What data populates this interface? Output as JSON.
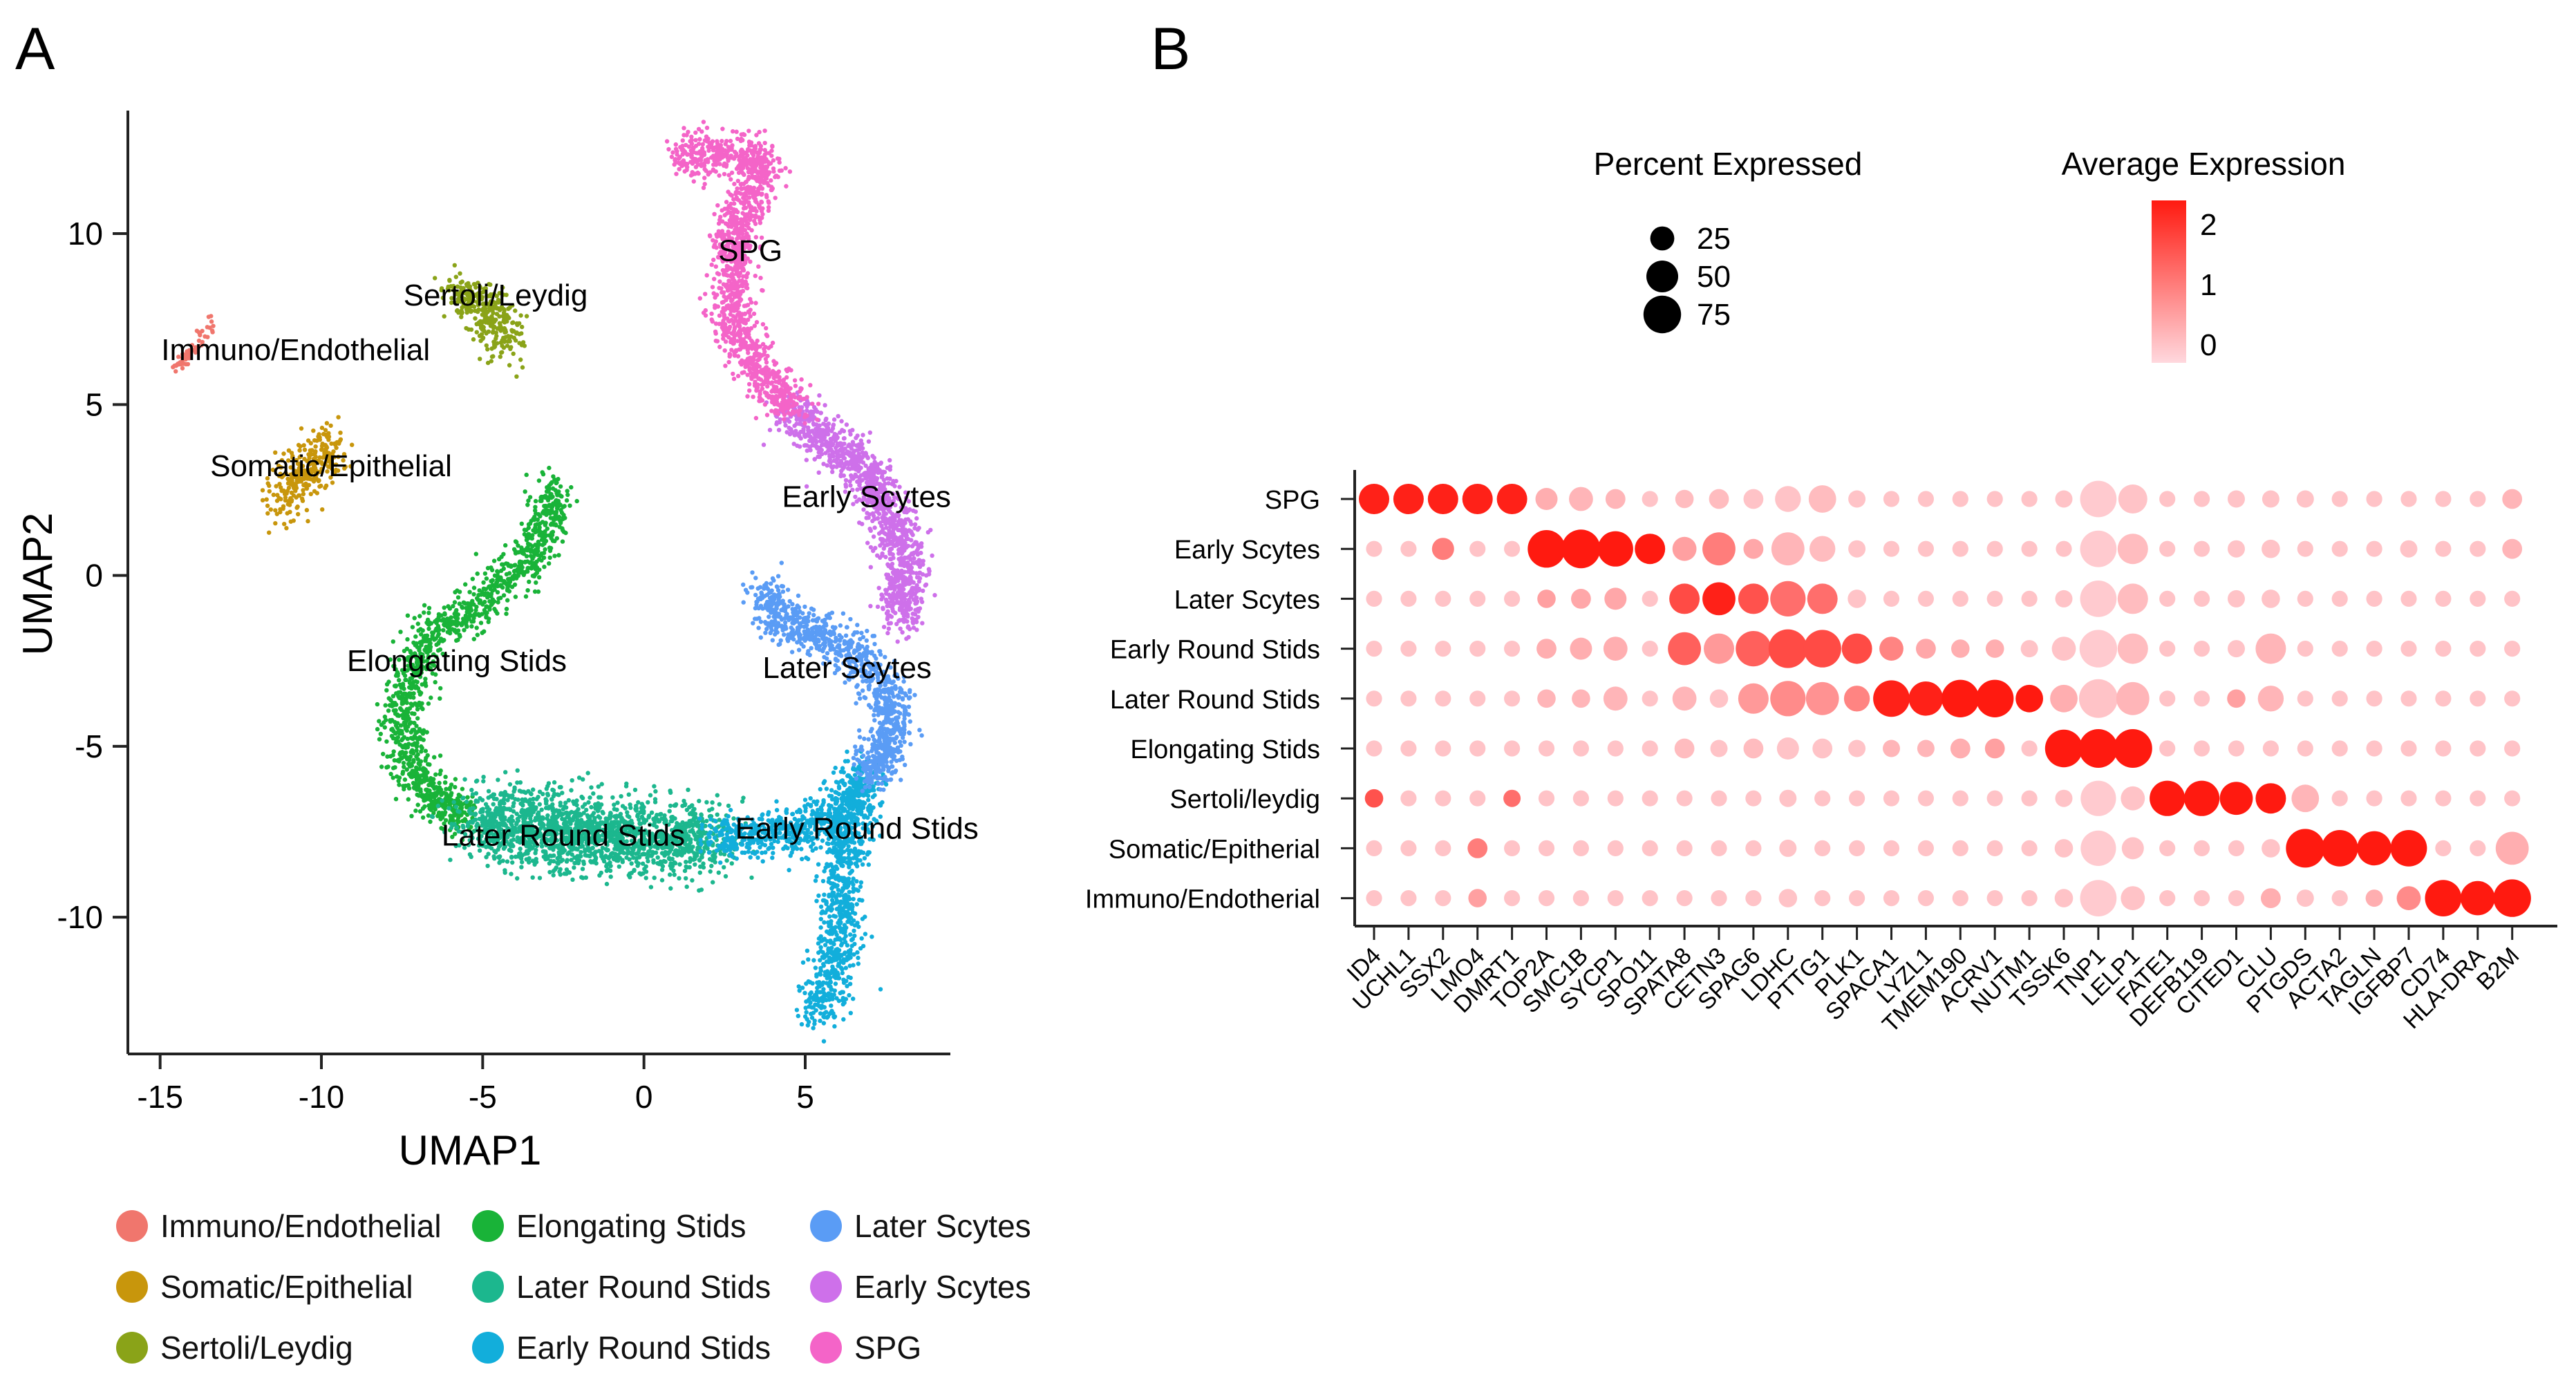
{
  "panels": {
    "a_label": "A",
    "b_label": "B"
  },
  "umap": {
    "xlabel": "UMAP1",
    "ylabel": "UMAP2",
    "xlim": [
      -16,
      9.5
    ],
    "ylim": [
      -14,
      13.6
    ],
    "xticks": [
      -15,
      -10,
      -5,
      0,
      5
    ],
    "yticks": [
      10,
      5,
      0,
      -5,
      -10
    ],
    "clusters": [
      {
        "name": "Immuno/Endothelial",
        "color": "#F0766D",
        "label_at": [
          -10.8,
          6.3
        ],
        "label_anchor": "middle"
      },
      {
        "name": "Somatic/Epithelial",
        "color": "#C8960C",
        "label_at": [
          -9.7,
          2.9
        ],
        "label_anchor": "middle"
      },
      {
        "name": "Sertoli/Leydig",
        "color": "#8AA318",
        "label_at": [
          -4.6,
          7.9
        ],
        "label_anchor": "middle"
      },
      {
        "name": "Elongating Stids",
        "color": "#19B338",
        "label_at": [
          -5.8,
          -2.8
        ],
        "label_anchor": "middle"
      },
      {
        "name": "Later Round Stids",
        "color": "#1CB78E",
        "label_at": [
          -2.5,
          -7.9
        ],
        "label_anchor": "middle"
      },
      {
        "name": "Early Round Stids",
        "color": "#12AEDB",
        "label_at": [
          6.6,
          -7.7
        ],
        "label_anchor": "middle"
      },
      {
        "name": "Later Scytes",
        "color": "#5A9CF5",
        "label_at": [
          6.3,
          -3.0
        ],
        "label_anchor": "middle"
      },
      {
        "name": "Early Scytes",
        "color": "#CE70EA",
        "label_at": [
          6.9,
          2.0
        ],
        "label_anchor": "middle"
      },
      {
        "name": "SPG",
        "color": "#F464C8",
        "label_at": [
          3.3,
          9.2
        ],
        "label_anchor": "middle"
      }
    ]
  },
  "legend_umap": [
    "Immuno/Endothelial",
    "Somatic/Epithelial",
    "Sertoli/Leydig",
    "Elongating Stids",
    "Later Round Stids",
    "Early Round Stids",
    "Later Scytes",
    "Early Scytes",
    "SPG"
  ],
  "chart_data": {
    "type": "scatter",
    "title": "",
    "xlabel": "",
    "ylabel": "",
    "genes": [
      "ID4",
      "UCHL1",
      "SSX2",
      "LMO4",
      "DMRT1",
      "TOP2A",
      "SMC1B",
      "SYCP1",
      "SPO11",
      "SPATA8",
      "CETN3",
      "SPAG6",
      "LDHC",
      "PTTG1",
      "PLK1",
      "SPACA1",
      "LYZL1",
      "TMEM190",
      "ACRV1",
      "NUTM1",
      "TSSK6",
      "TNP1",
      "LELP1",
      "FATE1",
      "DEFB119",
      "CITED1",
      "CLU",
      "PTGDS",
      "ACTA2",
      "TAGLN",
      "IGFBP7",
      "CD74",
      "HLA-DRA",
      "B2M"
    ],
    "groups": [
      "SPG",
      "Early Scytes",
      "Later Scytes",
      "Early Round Stids",
      "Later Round Stids",
      "Elongating Stids",
      "Sertoli/leydig",
      "Somatic/Epitherial",
      "Immuno/Endotherial"
    ],
    "size_legend_title": "Percent Expressed",
    "size_legend": [
      25,
      50,
      75
    ],
    "color_legend_title": "Average Expression",
    "color_legend_ticks": [
      2,
      1,
      0
    ],
    "color_range": [
      -0.3,
      2.4
    ],
    "color_low": "#FFD8DE",
    "color_high": "#FF1A10",
    "percent": [
      [
        45,
        45,
        45,
        45,
        45,
        20,
        25,
        15,
        8,
        12,
        15,
        15,
        30,
        35,
        10,
        8,
        8,
        8,
        8,
        8,
        10,
        70,
        40,
        8,
        8,
        10,
        10,
        10,
        8,
        8,
        8,
        8,
        8,
        15
      ],
      [
        8,
        8,
        20,
        8,
        8,
        75,
        80,
        65,
        45,
        25,
        55,
        15,
        55,
        30,
        10,
        8,
        8,
        8,
        8,
        8,
        8,
        70,
        45,
        8,
        8,
        10,
        12,
        8,
        8,
        8,
        10,
        8,
        8,
        15
      ],
      [
        8,
        8,
        8,
        8,
        8,
        12,
        15,
        20,
        8,
        45,
        55,
        45,
        65,
        45,
        12,
        8,
        8,
        8,
        8,
        8,
        10,
        70,
        45,
        8,
        8,
        10,
        12,
        8,
        8,
        8,
        8,
        8,
        8,
        8
      ],
      [
        8,
        8,
        8,
        8,
        8,
        15,
        20,
        25,
        8,
        55,
        45,
        65,
        80,
        75,
        45,
        25,
        15,
        12,
        12,
        10,
        25,
        75,
        45,
        8,
        8,
        10,
        45,
        8,
        8,
        8,
        8,
        8,
        8,
        8
      ],
      [
        8,
        8,
        8,
        8,
        8,
        12,
        12,
        25,
        8,
        25,
        12,
        45,
        65,
        55,
        30,
        70,
        60,
        75,
        75,
        35,
        35,
        80,
        55,
        8,
        8,
        12,
        30,
        8,
        8,
        8,
        8,
        8,
        8,
        8
      ],
      [
        8,
        8,
        8,
        8,
        8,
        8,
        8,
        8,
        8,
        15,
        10,
        15,
        20,
        15,
        10,
        10,
        10,
        15,
        15,
        8,
        75,
        80,
        80,
        8,
        8,
        8,
        8,
        8,
        8,
        8,
        8,
        8,
        8,
        8
      ],
      [
        12,
        8,
        8,
        8,
        10,
        8,
        8,
        8,
        8,
        8,
        8,
        8,
        10,
        8,
        8,
        8,
        8,
        8,
        8,
        8,
        10,
        65,
        25,
        65,
        65,
        55,
        45,
        35,
        8,
        8,
        8,
        8,
        8,
        8
      ],
      [
        8,
        8,
        8,
        15,
        8,
        8,
        8,
        8,
        8,
        8,
        8,
        8,
        10,
        8,
        8,
        8,
        8,
        8,
        8,
        8,
        12,
        65,
        20,
        8,
        8,
        8,
        12,
        80,
        70,
        60,
        70,
        8,
        8,
        55
      ],
      [
        8,
        8,
        8,
        12,
        8,
        8,
        8,
        8,
        8,
        8,
        8,
        8,
        12,
        8,
        8,
        8,
        8,
        8,
        8,
        8,
        12,
        70,
        25,
        8,
        8,
        8,
        15,
        10,
        8,
        10,
        25,
        70,
        60,
        75
      ]
    ],
    "avg_expression": [
      [
        2.3,
        2.3,
        2.3,
        2.3,
        2.3,
        0.3,
        0.2,
        0.2,
        0,
        0.1,
        0.1,
        0,
        0,
        0.1,
        0,
        0,
        0,
        0,
        0,
        0,
        0,
        -0.1,
        0,
        0,
        0,
        0,
        0,
        0,
        0,
        0,
        0,
        0,
        0,
        0.2
      ],
      [
        0,
        0,
        1.0,
        0,
        0,
        2.4,
        2.4,
        2.4,
        2.4,
        0.5,
        1.0,
        0.4,
        0.2,
        0.1,
        0,
        0,
        0,
        0,
        0,
        0,
        0,
        -0.1,
        0.1,
        0,
        0,
        0,
        0,
        0,
        0,
        0,
        0,
        0,
        0,
        0.2
      ],
      [
        0,
        0,
        0,
        0,
        0,
        0.5,
        0.4,
        0.4,
        0,
        1.7,
        2.3,
        1.6,
        1.2,
        1.2,
        0,
        0,
        0,
        0,
        0,
        0,
        0,
        -0.1,
        0.1,
        0,
        0,
        0,
        0,
        0,
        0,
        0,
        0,
        0,
        0,
        0
      ],
      [
        0,
        0,
        0,
        0,
        0,
        0.3,
        0.3,
        0.3,
        0,
        1.4,
        0.6,
        1.4,
        1.7,
        1.7,
        1.7,
        0.9,
        0.4,
        0.3,
        0.3,
        0,
        0,
        -0.1,
        0.1,
        0,
        0,
        0,
        0.2,
        0,
        0,
        0,
        0,
        0,
        0,
        0
      ],
      [
        0,
        0,
        0,
        0,
        0,
        0.2,
        0.2,
        0.2,
        0,
        0.2,
        0,
        0.6,
        0.8,
        0.7,
        0.9,
        2.3,
        2.3,
        2.4,
        2.4,
        2.4,
        0.3,
        0,
        0.2,
        0,
        0,
        0.5,
        0.2,
        0,
        0,
        0,
        0,
        0,
        0,
        0
      ],
      [
        0,
        0,
        0,
        0,
        0,
        0,
        0,
        0,
        0,
        0.1,
        0,
        0.1,
        0,
        0,
        0,
        0.2,
        0.2,
        0.3,
        0.5,
        0,
        2.4,
        2.4,
        2.4,
        0,
        0,
        0,
        0,
        0,
        0,
        0,
        0,
        0,
        0,
        0
      ],
      [
        1.6,
        0,
        0,
        0,
        1.2,
        0,
        0,
        0,
        0,
        0,
        0,
        0,
        0,
        0,
        0,
        0,
        0,
        0,
        0,
        0,
        0,
        -0.1,
        0,
        2.4,
        2.4,
        2.4,
        2.4,
        0.2,
        0,
        0,
        0,
        0,
        0,
        0
      ],
      [
        0,
        0,
        0,
        1.0,
        0,
        0,
        0,
        0,
        0,
        0,
        0,
        0,
        0,
        0,
        0,
        0,
        0,
        0,
        0,
        0,
        0,
        -0.1,
        0,
        0,
        0,
        0,
        0,
        2.4,
        2.4,
        2.4,
        2.4,
        0,
        0,
        0.3
      ],
      [
        0,
        0,
        0,
        0.5,
        0,
        0,
        0,
        0,
        0,
        0,
        0,
        0,
        0,
        0,
        0,
        0,
        0,
        0,
        0,
        0,
        0,
        -0.1,
        0,
        0,
        0,
        0,
        0.3,
        0,
        0,
        0.3,
        0.8,
        2.4,
        2.4,
        2.4
      ]
    ]
  }
}
